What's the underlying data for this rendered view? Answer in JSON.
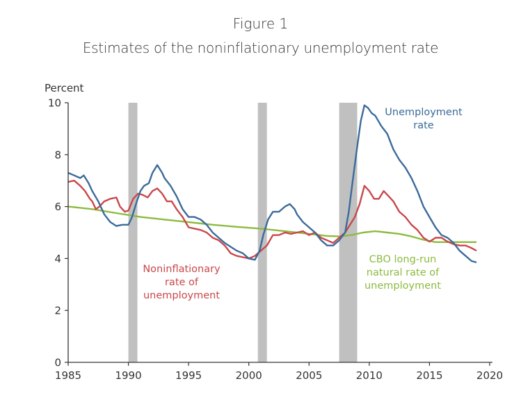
{
  "figure": {
    "number": "Figure 1",
    "title": "Estimates of the noninflationary unemployment rate"
  },
  "chart_data": {
    "type": "line",
    "title": "Estimates of the noninflationary unemployment rate",
    "ylabel": "Percent",
    "xlabel": "",
    "xlim": [
      1985,
      2020
    ],
    "ylim": [
      0,
      10
    ],
    "xticks": [
      1985,
      1990,
      1995,
      2000,
      2005,
      2010,
      2015,
      2020
    ],
    "yticks": [
      0,
      2,
      4,
      6,
      8,
      10
    ],
    "grid": false,
    "colors": {
      "unemployment": "#3b6a9a",
      "noninflationary": "#c9474a",
      "cbo": "#8cbb3f",
      "recession": "#c0c0c0",
      "axis": "#333333"
    },
    "recessions": [
      [
        1990.0,
        1990.75
      ],
      [
        2000.75,
        2001.5
      ],
      [
        2007.5,
        2009.0
      ]
    ],
    "series": [
      {
        "name": "Unemployment rate",
        "key": "unemployment",
        "x": [
          1985,
          1985.5,
          1986,
          1986.3,
          1986.7,
          1987,
          1987.5,
          1988,
          1988.5,
          1989,
          1989.5,
          1990,
          1990.3,
          1990.7,
          1991,
          1991.3,
          1991.7,
          1992,
          1992.4,
          1992.8,
          1993,
          1993.5,
          1994,
          1994.5,
          1995,
          1995.5,
          1996,
          1996.5,
          1997,
          1997.5,
          1998,
          1998.5,
          1999,
          1999.5,
          2000,
          2000.5,
          2000.9,
          2001.2,
          2001.6,
          2002,
          2002.5,
          2003,
          2003.4,
          2003.8,
          2004,
          2004.5,
          2005,
          2005.5,
          2006,
          2006.5,
          2007,
          2007.5,
          2008,
          2008.3,
          2008.6,
          2009,
          2009.3,
          2009.6,
          2009.9,
          2010.2,
          2010.5,
          2011,
          2011.5,
          2012,
          2012.5,
          2013,
          2013.5,
          2014,
          2014.5,
          2015,
          2015.5,
          2016,
          2016.5,
          2017,
          2017.5,
          2018,
          2018.5,
          2018.9
        ],
        "y": [
          7.3,
          7.2,
          7.1,
          7.2,
          6.9,
          6.6,
          6.2,
          5.7,
          5.4,
          5.25,
          5.3,
          5.3,
          5.6,
          6.2,
          6.6,
          6.8,
          6.9,
          7.3,
          7.6,
          7.3,
          7.1,
          6.8,
          6.4,
          5.9,
          5.6,
          5.6,
          5.5,
          5.3,
          5.0,
          4.8,
          4.6,
          4.45,
          4.3,
          4.2,
          4.0,
          3.95,
          4.3,
          4.9,
          5.5,
          5.8,
          5.8,
          6.0,
          6.1,
          5.9,
          5.7,
          5.4,
          5.2,
          5.0,
          4.7,
          4.5,
          4.5,
          4.7,
          5.0,
          5.8,
          6.9,
          8.3,
          9.3,
          9.9,
          9.8,
          9.6,
          9.5,
          9.1,
          8.8,
          8.2,
          7.8,
          7.5,
          7.1,
          6.6,
          6.0,
          5.6,
          5.2,
          4.9,
          4.8,
          4.6,
          4.3,
          4.1,
          3.9,
          3.85
        ]
      },
      {
        "name": "Noninflationary rate of unemployment",
        "key": "noninflationary",
        "x": [
          1985,
          1985.5,
          1986,
          1986.4,
          1986.8,
          1987,
          1987.3,
          1987.6,
          1988,
          1988.5,
          1989,
          1989.3,
          1989.7,
          1990,
          1990.4,
          1990.8,
          1991.2,
          1991.6,
          1992,
          1992.4,
          1992.8,
          1993.2,
          1993.6,
          1994,
          1994.5,
          1995,
          1995.5,
          1996,
          1996.5,
          1997,
          1997.5,
          1998,
          1998.5,
          1999,
          1999.5,
          2000,
          2000.5,
          2001,
          2001.5,
          2002,
          2002.5,
          2003,
          2003.5,
          2004,
          2004.5,
          2005,
          2005.5,
          2006,
          2006.5,
          2007,
          2007.5,
          2008,
          2008.4,
          2008.8,
          2009.2,
          2009.6,
          2010,
          2010.4,
          2010.8,
          2011.2,
          2011.6,
          2012,
          2012.5,
          2013,
          2013.5,
          2014,
          2014.5,
          2015,
          2015.5,
          2016,
          2016.5,
          2017,
          2017.5,
          2018,
          2018.5,
          2018.9
        ],
        "y": [
          6.95,
          7.0,
          6.8,
          6.6,
          6.3,
          6.2,
          5.9,
          6.0,
          6.2,
          6.3,
          6.35,
          6.0,
          5.8,
          5.85,
          6.3,
          6.5,
          6.45,
          6.35,
          6.6,
          6.7,
          6.5,
          6.2,
          6.2,
          5.9,
          5.6,
          5.2,
          5.15,
          5.1,
          5.0,
          4.8,
          4.7,
          4.5,
          4.2,
          4.1,
          4.05,
          4.0,
          4.1,
          4.3,
          4.5,
          4.9,
          4.9,
          5.0,
          4.95,
          5.0,
          5.05,
          4.9,
          5.0,
          4.8,
          4.7,
          4.6,
          4.8,
          5.0,
          5.3,
          5.6,
          6.1,
          6.8,
          6.6,
          6.3,
          6.3,
          6.6,
          6.4,
          6.2,
          5.8,
          5.6,
          5.3,
          5.1,
          4.8,
          4.65,
          4.8,
          4.8,
          4.65,
          4.55,
          4.5,
          4.5,
          4.4,
          4.3
        ]
      },
      {
        "name": "CBO long-run natural rate of unemployment",
        "key": "cbo",
        "x": [
          1985,
          1987,
          1989,
          1991,
          1993,
          1995,
          1997,
          1999,
          2001,
          2003,
          2005,
          2006.5,
          2007.5,
          2008.5,
          2009.5,
          2010.5,
          2011.5,
          2012.5,
          2013.5,
          2014.5,
          2015.5,
          2016.5,
          2017.5,
          2018.9
        ],
        "y": [
          6.0,
          5.9,
          5.75,
          5.6,
          5.5,
          5.4,
          5.3,
          5.22,
          5.15,
          5.05,
          4.95,
          4.87,
          4.85,
          4.9,
          5.0,
          5.05,
          5.0,
          4.95,
          4.85,
          4.72,
          4.63,
          4.63,
          4.63,
          4.63
        ]
      }
    ],
    "annotations": [
      {
        "series": "unemployment",
        "lines": [
          "Unemployment",
          "rate"
        ]
      },
      {
        "series": "noninflationary",
        "lines": [
          "Noninflationary",
          "rate of",
          "unemployment"
        ]
      },
      {
        "series": "cbo",
        "lines": [
          "CBO long-run",
          "natural rate of",
          "unemployment"
        ]
      }
    ]
  }
}
